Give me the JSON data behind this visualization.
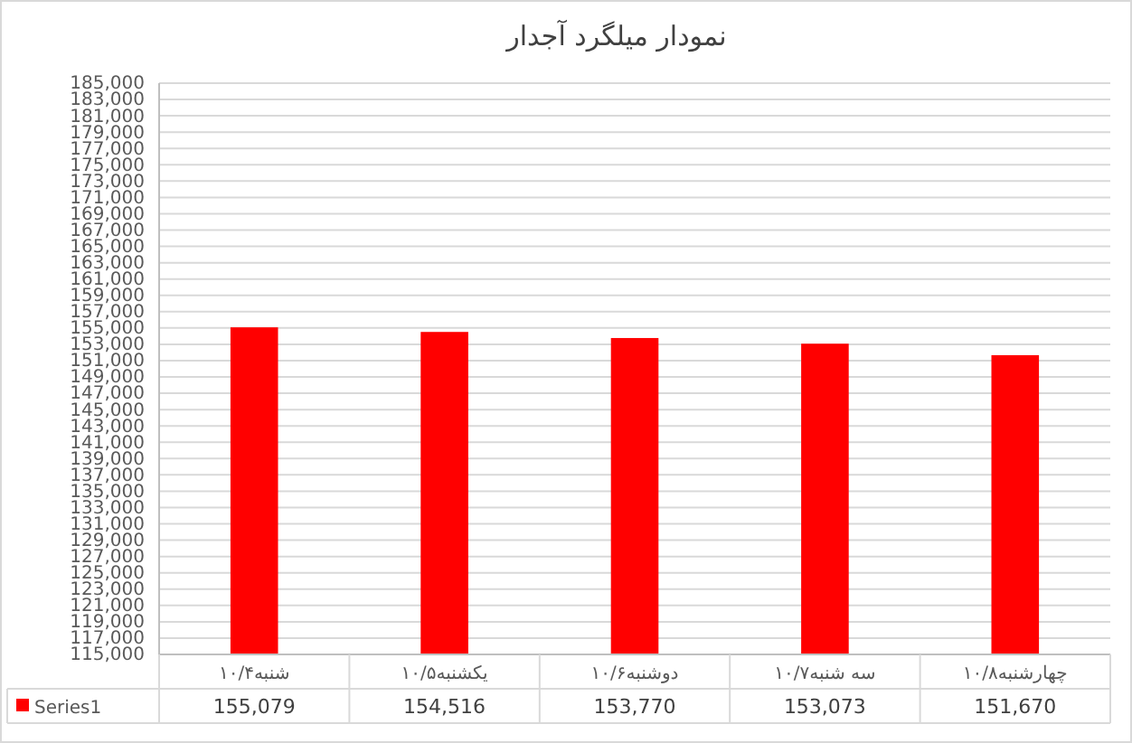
{
  "chart_data": {
    "type": "bar",
    "title": "نمودار میلگرد آجدار",
    "categories": [
      "شنبه۱۰/۴",
      "یکشنبه۱۰/۵",
      "دوشنبه۱۰/۶",
      "سه شنبه۱۰/۷",
      "چهارشنبه۱۰/۸"
    ],
    "series": [
      {
        "name": "Series1",
        "color": "#ff0000",
        "values": [
          155079,
          154516,
          153770,
          153073,
          151670
        ],
        "value_labels": [
          "155,079",
          "154,516",
          "153,770",
          "153,073",
          "151,670"
        ]
      }
    ],
    "ylim": [
      115000,
      185000
    ],
    "yticks": [
      {
        "value": 115000,
        "label": "115,000"
      },
      {
        "value": 117000,
        "label": "117,000"
      },
      {
        "value": 119000,
        "label": "119,000"
      },
      {
        "value": 121000,
        "label": "121,000"
      },
      {
        "value": 123000,
        "label": "123,000"
      },
      {
        "value": 125000,
        "label": "125,000"
      },
      {
        "value": 127000,
        "label": "127,000"
      },
      {
        "value": 129000,
        "label": "129,000"
      },
      {
        "value": 131000,
        "label": "131,000"
      },
      {
        "value": 133000,
        "label": "133,000"
      },
      {
        "value": 135000,
        "label": "135,000"
      },
      {
        "value": 137000,
        "label": "137,000"
      },
      {
        "value": 139000,
        "label": "139,000"
      },
      {
        "value": 141000,
        "label": "141,000"
      },
      {
        "value": 143000,
        "label": "143,000"
      },
      {
        "value": 145000,
        "label": "145,000"
      },
      {
        "value": 147000,
        "label": "147,000"
      },
      {
        "value": 149000,
        "label": "149,000"
      },
      {
        "value": 151000,
        "label": "151,000"
      },
      {
        "value": 153000,
        "label": "153,000"
      },
      {
        "value": 155000,
        "label": "155,000"
      },
      {
        "value": 157000,
        "label": "157,000"
      },
      {
        "value": 159000,
        "label": "159,000"
      },
      {
        "value": 161000,
        "label": "161,000"
      },
      {
        "value": 163000,
        "label": "163,000"
      },
      {
        "value": 165000,
        "label": "165,000"
      },
      {
        "value": 167000,
        "label": "167,000"
      },
      {
        "value": 169000,
        "label": "169,000"
      },
      {
        "value": 171000,
        "label": "171,000"
      },
      {
        "value": 173000,
        "label": "173,000"
      },
      {
        "value": 175000,
        "label": "175,000"
      },
      {
        "value": 177000,
        "label": "177,000"
      },
      {
        "value": 179000,
        "label": "179,000"
      },
      {
        "value": 181000,
        "label": "181,000"
      },
      {
        "value": 183000,
        "label": "183,000"
      },
      {
        "value": 185000,
        "label": "185,000"
      }
    ],
    "grid": "y",
    "legend": "bottom"
  }
}
